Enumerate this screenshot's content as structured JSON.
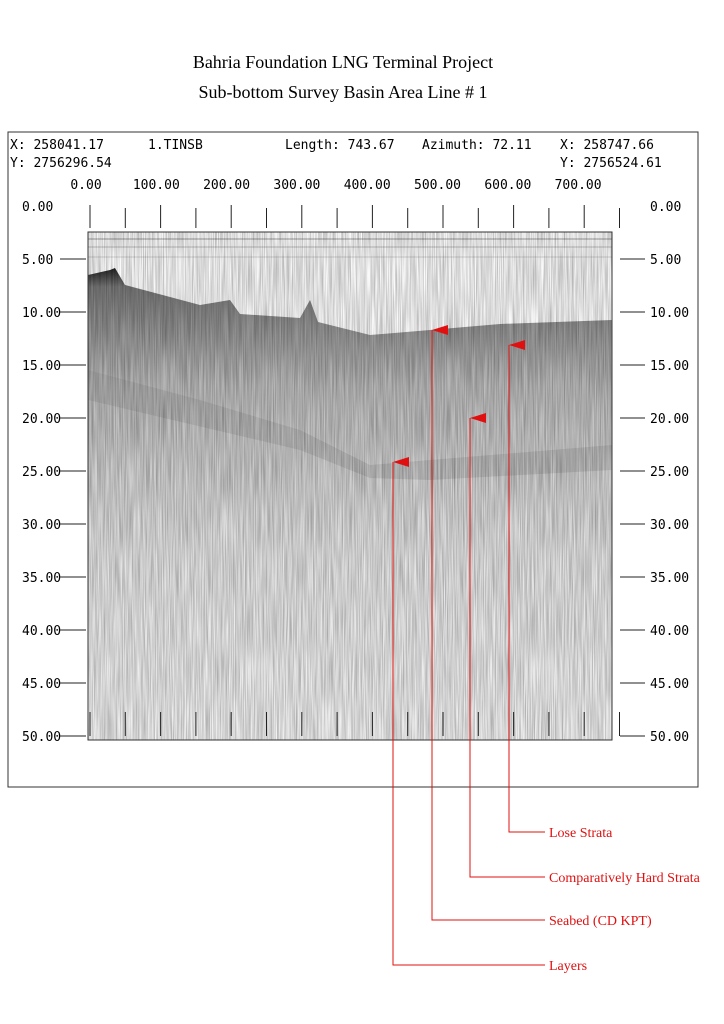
{
  "header": {
    "title": "Bahria Foundation LNG Terminal Project",
    "subtitle": "Sub-bottom Survey Basin Area Line # 1"
  },
  "info": {
    "start_x": "X: 258041.17",
    "start_y": "Y: 2756296.54",
    "line_name": "1.TINSB",
    "length": "Length: 743.67",
    "azimuth": "Azimuth: 72.11",
    "end_x": "X: 258747.66",
    "end_y": "Y: 2756524.61"
  },
  "x_ticks": [
    "0.00",
    "100.00",
    "200.00",
    "300.00",
    "400.00",
    "500.00",
    "600.00",
    "700.00"
  ],
  "y_ticks": [
    "0.00",
    "5.00",
    "10.00",
    "15.00",
    "20.00",
    "25.00",
    "30.00",
    "35.00",
    "40.00",
    "45.00",
    "50.00"
  ],
  "annotations": [
    "Lose Strata",
    "Comparatively Hard Strata",
    "Seabed (CD KPT)",
    "Layers"
  ]
}
